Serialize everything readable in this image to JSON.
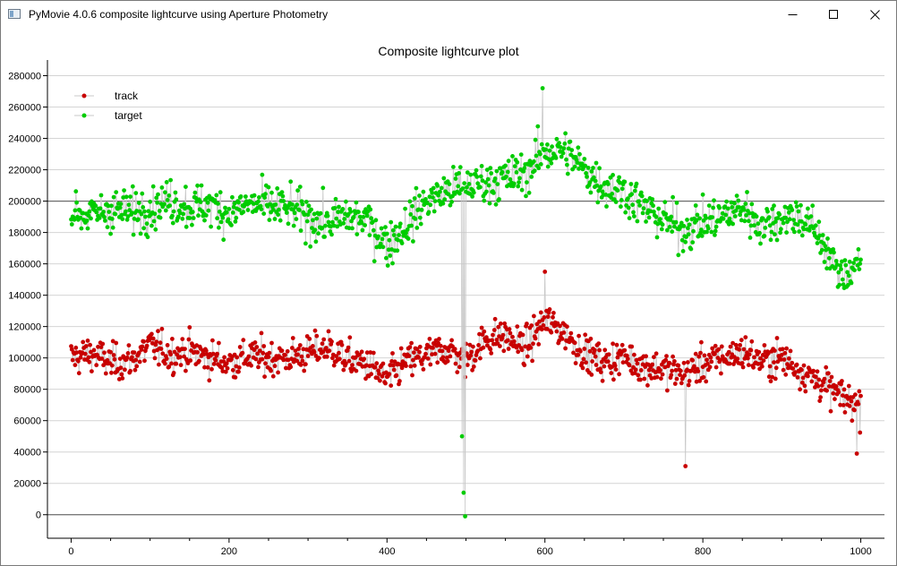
{
  "window": {
    "title": "PyMovie 4.0.6 composite lightcurve using Aperture Photometry"
  },
  "chart_data": {
    "type": "scatter",
    "title": "Composite lightcurve plot",
    "xlabel": "",
    "ylabel": "",
    "xlim": [
      -30,
      1030
    ],
    "ylim": [
      -15000,
      290000
    ],
    "xticks": [
      0,
      200,
      400,
      600,
      800,
      1000
    ],
    "yticks": [
      0,
      20000,
      40000,
      60000,
      80000,
      100000,
      120000,
      140000,
      160000,
      180000,
      200000,
      220000,
      240000,
      260000,
      280000
    ],
    "grid": "horizontal",
    "reference_line": 200000,
    "legend_position": "top-left",
    "series": [
      {
        "name": "track",
        "color": "#c80000",
        "marker": "circle",
        "connected": true,
        "n_frames": 1001,
        "x": [
          0,
          25,
          50,
          75,
          100,
          125,
          150,
          175,
          200,
          225,
          250,
          275,
          300,
          325,
          350,
          375,
          400,
          425,
          450,
          475,
          500,
          525,
          550,
          575,
          600,
          625,
          650,
          675,
          700,
          725,
          750,
          775,
          800,
          825,
          850,
          875,
          900,
          925,
          950,
          975,
          1000
        ],
        "values": [
          100000,
          103000,
          97000,
          98000,
          108000,
          102000,
          104000,
          100000,
          97000,
          101000,
          100000,
          100000,
          103000,
          107000,
          99000,
          96000,
          86000,
          98000,
          101000,
          106000,
          98000,
          112000,
          114000,
          106000,
          124000,
          116000,
          103000,
          97000,
          101000,
          95000,
          93000,
          90000,
          96000,
          100000,
          104000,
          98000,
          100000,
          92000,
          84000,
          75000,
          70000
        ],
        "notable_points": [
          {
            "x": 500,
            "y": 109000
          },
          {
            "x": 600,
            "y": 155000
          },
          {
            "x": 778,
            "y": 31000
          },
          {
            "x": 995,
            "y": 39000
          }
        ]
      },
      {
        "name": "target",
        "color": "#00cc00",
        "marker": "circle",
        "connected": true,
        "n_frames": 1001,
        "x": [
          0,
          25,
          50,
          75,
          100,
          125,
          150,
          175,
          200,
          225,
          250,
          275,
          300,
          325,
          350,
          375,
          400,
          425,
          450,
          475,
          500,
          525,
          550,
          575,
          600,
          625,
          650,
          675,
          700,
          725,
          750,
          775,
          800,
          825,
          850,
          875,
          900,
          925,
          950,
          975,
          1000
        ],
        "values": [
          195000,
          190000,
          195000,
          193000,
          196000,
          200000,
          196000,
          198000,
          192000,
          198000,
          197000,
          195000,
          190000,
          186000,
          190000,
          188000,
          172000,
          185000,
          200000,
          206000,
          210000,
          212000,
          214000,
          218000,
          232000,
          232000,
          220000,
          210000,
          206000,
          196000,
          188000,
          182000,
          186000,
          190000,
          196000,
          184000,
          190000,
          190000,
          176000,
          150000,
          165000
        ],
        "notable_points": [
          {
            "x": 597,
            "y": 272000
          },
          {
            "x": 495,
            "y": 50000
          },
          {
            "x": 497,
            "y": 14000
          },
          {
            "x": 499,
            "y": -1000
          }
        ]
      }
    ]
  }
}
